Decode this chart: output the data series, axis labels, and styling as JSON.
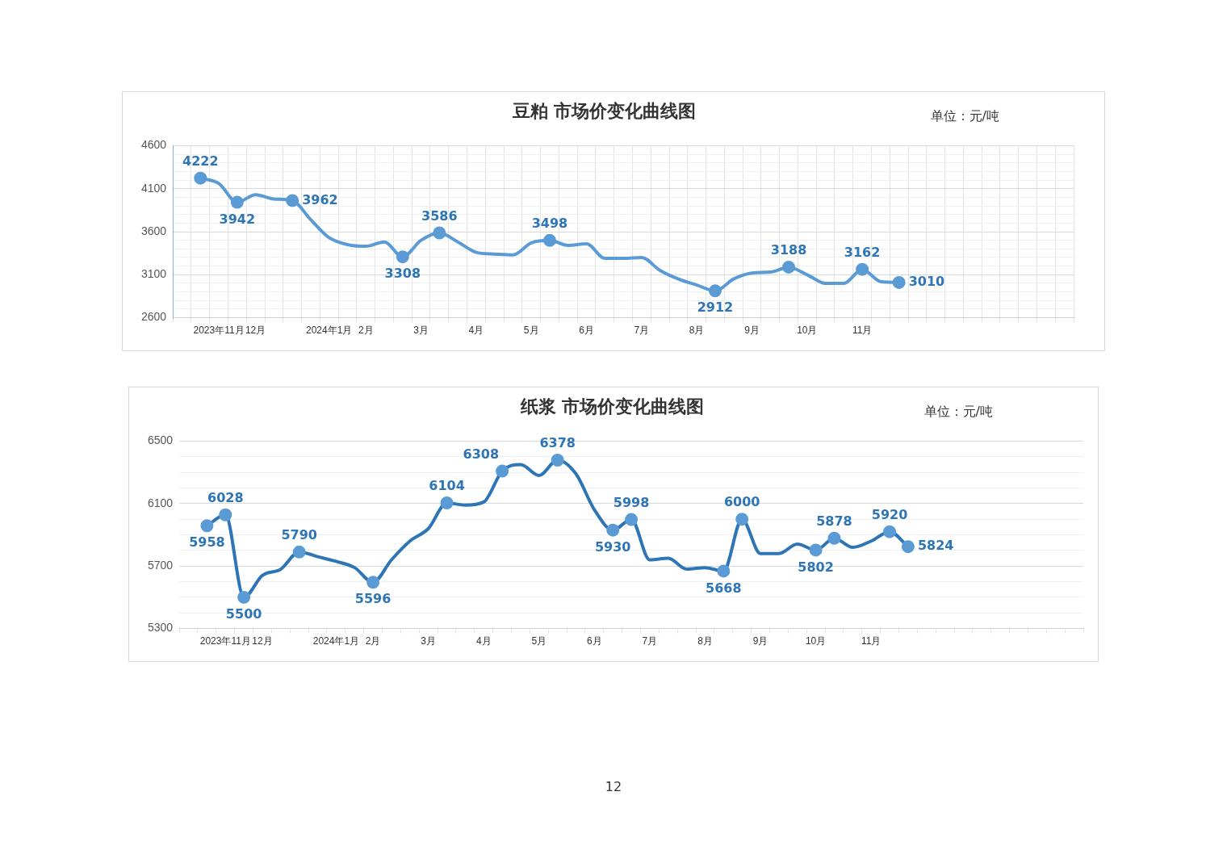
{
  "chart_data": [
    {
      "type": "line",
      "title": "豆粕 市场价变化曲线图",
      "annotations": [
        "单位：元/吨"
      ],
      "categories": [
        null,
        null,
        "2023年11月",
        null,
        "12月",
        null,
        null,
        null,
        "2024年1月",
        null,
        "2月",
        null,
        null,
        "3月",
        null,
        null,
        "4月",
        null,
        null,
        "5月",
        null,
        null,
        "6月",
        null,
        null,
        "7月",
        null,
        null,
        "8月",
        null,
        null,
        "9月",
        null,
        null,
        "10月",
        null,
        null,
        "11月",
        null,
        null,
        null,
        null,
        null,
        null,
        null,
        null,
        null,
        null,
        null
      ],
      "series": [
        {
          "color": "#5b9bd5",
          "values": [
            null,
            4222,
            4160,
            3942,
            4030,
            3980,
            3962,
            3740,
            3530,
            3450,
            3430,
            3480,
            3308,
            3500,
            3586,
            3480,
            3360,
            3340,
            3330,
            3470,
            3498,
            3440,
            3460,
            3290,
            3290,
            3300,
            3150,
            3050,
            2980,
            2912,
            3050,
            3120,
            3130,
            3188,
            3100,
            3000,
            3000,
            3162,
            3020,
            3010,
            null,
            null,
            null,
            null,
            null,
            null,
            null,
            null,
            null
          ],
          "value_labels": [
            null,
            "4222",
            null,
            "3942",
            null,
            null,
            "3962",
            null,
            null,
            null,
            null,
            null,
            "3308",
            null,
            "3586",
            null,
            null,
            null,
            null,
            null,
            "3498",
            null,
            null,
            null,
            null,
            null,
            null,
            null,
            null,
            "2912",
            null,
            null,
            null,
            "3188",
            null,
            null,
            null,
            "3162",
            null,
            "3010",
            null,
            null,
            null,
            null,
            null,
            null,
            null,
            null,
            null
          ]
        }
      ],
      "ylim": [
        2600,
        4600
      ],
      "yticks": [
        2600,
        {
          "value": 2700,
          "label": null
        },
        {
          "value": 2800,
          "label": null
        },
        {
          "value": 2900,
          "label": null
        },
        {
          "value": 3000,
          "label": null
        },
        3100,
        {
          "value": 3200,
          "label": null
        },
        {
          "value": 3300,
          "label": null
        },
        {
          "value": 3400,
          "label": null
        },
        {
          "value": 3500,
          "label": null
        },
        3600,
        {
          "value": 3700,
          "label": null
        },
        {
          "value": 3800,
          "label": null
        },
        {
          "value": 3900,
          "label": null
        },
        {
          "value": 4000,
          "label": null
        },
        4100,
        {
          "value": 4200,
          "label": null
        },
        {
          "value": 4300,
          "label": null
        },
        {
          "value": 4400,
          "label": null
        },
        {
          "value": 4500,
          "label": null
        },
        4600
      ],
      "grid": true,
      "line_style": "solid"
    },
    {
      "type": "line",
      "title": "纸浆 市场价变化曲线图",
      "annotations": [
        "单位：元/吨",
        "12"
      ],
      "categories": [
        null,
        null,
        "2023年11月",
        null,
        "12月",
        null,
        null,
        null,
        "2024年1月",
        null,
        "2月",
        null,
        null,
        "3月",
        null,
        null,
        "4月",
        null,
        null,
        "5月",
        null,
        null,
        "6月",
        null,
        null,
        "7月",
        null,
        null,
        "8月",
        null,
        null,
        "9月",
        null,
        null,
        "10月",
        null,
        null,
        "11月",
        null,
        null,
        null,
        null,
        null,
        null,
        null,
        null,
        null,
        null,
        null
      ],
      "series": [
        {
          "color": "#2e75b6",
          "values": [
            null,
            5958,
            6028,
            5500,
            5640,
            5680,
            5790,
            5760,
            5730,
            5690,
            5596,
            5740,
            5860,
            5940,
            6104,
            6090,
            6110,
            6308,
            6350,
            6280,
            6378,
            6290,
            6060,
            5930,
            5998,
            5740,
            5750,
            5680,
            5690,
            5668,
            6000,
            5780,
            5780,
            5840,
            5802,
            5878,
            5820,
            5860,
            5920,
            5824,
            null,
            null,
            null,
            null,
            null,
            null,
            null,
            null,
            null
          ],
          "value_labels": [
            null,
            "5958",
            "6028",
            "5500",
            null,
            null,
            "5790",
            null,
            null,
            null,
            "5596",
            null,
            null,
            null,
            "6104",
            null,
            null,
            "6308",
            null,
            null,
            "6378",
            null,
            null,
            "5930",
            "5998",
            null,
            null,
            null,
            null,
            "5668",
            "6000",
            null,
            null,
            null,
            "5802",
            "5878",
            null,
            null,
            "5920",
            "5824",
            null,
            null,
            null,
            null,
            null,
            null,
            null,
            null,
            null
          ]
        }
      ],
      "ylim": [
        5300,
        6500
      ],
      "yticks": [
        5300,
        {
          "value": 5400,
          "label": null
        },
        {
          "value": 5500,
          "label": null
        },
        {
          "value": 5600,
          "label": null
        },
        5700,
        {
          "value": 5800,
          "label": null
        },
        {
          "value": 5900,
          "label": null
        },
        {
          "value": 6000,
          "label": null
        },
        6100,
        {
          "value": 6200,
          "label": null
        },
        {
          "value": 6300,
          "label": null
        },
        {
          "value": 6400,
          "label": null
        },
        6500
      ],
      "grid": "y",
      "line_style": "solid"
    }
  ]
}
